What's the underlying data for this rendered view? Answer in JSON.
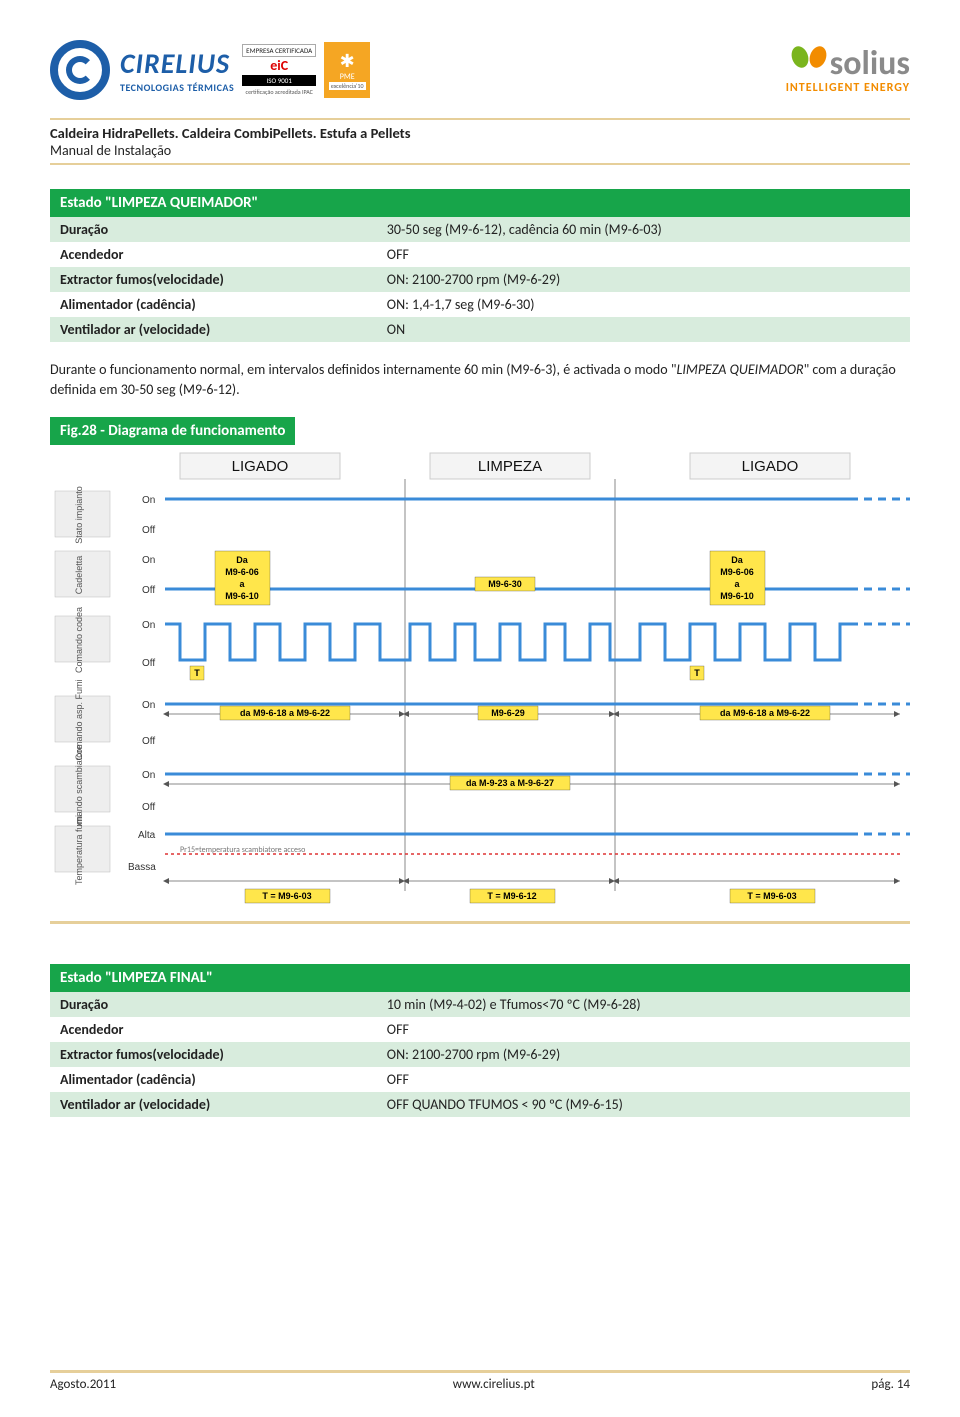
{
  "header": {
    "cirelius_name": "CIRELIUS",
    "cirelius_tag": "TECNOLOGIAS TÉRMICAS",
    "cert_line1": "EMPRESA CERTIFICADA",
    "cert_eic": "eiC",
    "cert_iso": "ISO 9001",
    "cert_ac": "certificação acreditada IPAC",
    "pme_label": "PME",
    "pme_sub": "excelência'10",
    "solius_name": "solius",
    "solius_tag": "INTELLIGENT ENERGY"
  },
  "doc": {
    "title": "Caldeira HidraPellets. Caldeira CombiPellets. Estufa a Pellets",
    "subtitle": "Manual de Instalação"
  },
  "table1": {
    "header": "Estado \"LIMPEZA QUEIMADOR\"",
    "rows": [
      {
        "k": "Duração",
        "v": "30-50 seg (M9-6-12), cadência 60 min (M9-6-03)"
      },
      {
        "k": "Acendedor",
        "v": "OFF"
      },
      {
        "k": "Extractor fumos(velocidade)",
        "v": "ON: 2100-2700 rpm (M9-6-29)"
      },
      {
        "k": "Alimentador (cadência)",
        "v": "ON: 1,4-1,7 seg (M9-6-30)"
      },
      {
        "k": "Ventilador ar (velocidade)",
        "v": "ON"
      }
    ]
  },
  "paragraph": "Durante o funcionamento normal, em intervalos definidos internamente 60 min (M9-6-3), é activada o modo \"LIMPEZA QUEIMADOR\" com a duração definida em 30-50 seg (M9-6-12).",
  "fig": {
    "caption": "Fig.28 - Diagrama de funcionamento",
    "top_states": [
      "LIGADO",
      "LIMPEZA",
      "LIGADO"
    ],
    "row_labels": [
      "Stato impianto",
      "Cadeletta",
      "Comando codea",
      "Comando asp. Fumi",
      "Comando scambiatore",
      "Temperatura fumi"
    ],
    "onoff": {
      "on": "On",
      "off": "Off",
      "alta": "Alta",
      "bassa": "Bassa"
    },
    "yellow_boxes": {
      "da1": "Da\nM9-6-06\na\nM9-6-10",
      "mid": "M9-6-30",
      "da2": "Da\nM9-6-06\na\nM9-6-10",
      "t": "T",
      "r3a": "da M9-6-18 a M9-6-22",
      "r3b": "M9-6-29",
      "r3c": "da M9-6-18 a M9-6-22",
      "r4": "da M-9-23 a M-9-6-27",
      "tleft": "T = M9-6-03",
      "tcenter": "T = M9-6-12",
      "tright": "T = M9-6-03"
    },
    "annot": "Pr15=temperatura scambiatore acceso",
    "colors": {
      "blue": "#3a8bd8",
      "yellow": "#ffe64b",
      "green": "#17a54a",
      "tan": "#e6cf9a",
      "red": "#d33"
    }
  },
  "table2": {
    "header": "Estado \"LIMPEZA FINAL\"",
    "rows": [
      {
        "k": "Duração",
        "v": "10 min (M9-4-02) e Tfumos<70 ºC (M9-6-28)"
      },
      {
        "k": "Acendedor",
        "v": "OFF"
      },
      {
        "k": "Extractor fumos(velocidade)",
        "v": "ON: 2100-2700 rpm (M9-6-29)"
      },
      {
        "k": "Alimentador (cadência)",
        "v": "OFF"
      },
      {
        "k": "Ventilador ar (velocidade)",
        "v": "OFF QUANDO TFUMOS < 90 ºC (M9-6-15)"
      }
    ]
  },
  "footer": {
    "date": "Agosto.2011",
    "url": "www.cirelius.pt",
    "page": "pág. 14"
  }
}
